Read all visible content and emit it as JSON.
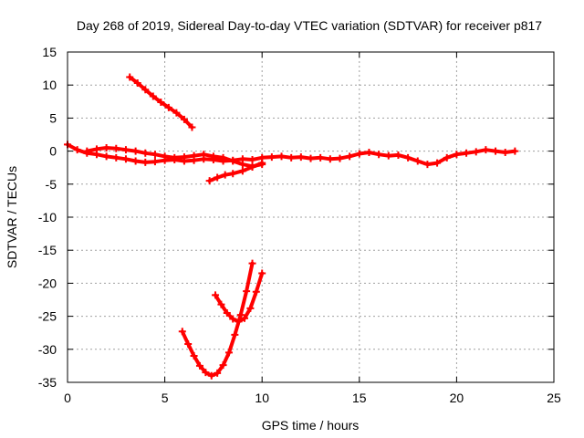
{
  "chart_data": {
    "type": "scatter",
    "title": "Day 268 of 2019, Sidereal Day-to-day VTEC variation (SDTVAR) for receiver p817",
    "xlabel": "GPS time / hours",
    "ylabel": "SDTVAR / TECUs",
    "xlim": [
      0,
      25
    ],
    "ylim": [
      -35,
      15
    ],
    "xticks": [
      0,
      5,
      10,
      15,
      20,
      25
    ],
    "yticks": [
      15,
      10,
      5,
      0,
      -5,
      -10,
      -15,
      -20,
      -25,
      -30,
      -35
    ],
    "grid": true,
    "color": "#ff0000",
    "series": [
      {
        "x": [
          0.0,
          0.5,
          1.0,
          1.5,
          2.0,
          2.5,
          3.0,
          3.5,
          4.0,
          4.5,
          5.0,
          5.5,
          6.0,
          6.5,
          7.0,
          7.5,
          8.0,
          8.5,
          9.0,
          9.5,
          10.0,
          10.5,
          11.0,
          11.5,
          12.0,
          12.5,
          13.0,
          13.5,
          14.0,
          14.5,
          15.0,
          15.5,
          16.0,
          16.5,
          17.0,
          17.5,
          18.0,
          18.5,
          19.0,
          19.5,
          20.0,
          20.5,
          21.0,
          21.5,
          22.0,
          22.5,
          23.0
        ],
        "y": [
          1.0,
          0.2,
          -0.3,
          -0.5,
          -0.8,
          -1.0,
          -1.2,
          -1.5,
          -1.7,
          -1.6,
          -1.4,
          -1.3,
          -1.5,
          -1.4,
          -1.2,
          -1.3,
          -1.5,
          -1.4,
          -1.2,
          -1.3,
          -1.0,
          -0.9,
          -0.8,
          -1.0,
          -0.9,
          -1.1,
          -1.0,
          -1.2,
          -1.1,
          -0.8,
          -0.4,
          -0.2,
          -0.5,
          -0.7,
          -0.6,
          -1.0,
          -1.5,
          -2.0,
          -1.8,
          -1.0,
          -0.5,
          -0.3,
          -0.1,
          0.2,
          0.0,
          -0.2,
          0.0
        ]
      },
      {
        "x": [
          1.0,
          1.5,
          2.0,
          2.5,
          3.0,
          3.5,
          4.0,
          4.5,
          5.0,
          5.5,
          6.0,
          6.5,
          7.0,
          7.5,
          8.0,
          8.5,
          9.0,
          9.5,
          10.0
        ],
        "y": [
          0.0,
          0.3,
          0.5,
          0.4,
          0.2,
          0.0,
          -0.3,
          -0.5,
          -0.8,
          -1.0,
          -0.9,
          -0.7,
          -0.5,
          -0.8,
          -1.0,
          -1.5,
          -2.0,
          -2.3,
          -2.0
        ]
      },
      {
        "x": [
          7.3,
          7.7,
          8.1,
          8.5,
          9.0,
          9.5,
          10.0
        ],
        "y": [
          -4.5,
          -4.0,
          -3.6,
          -3.4,
          -3.0,
          -2.4,
          -1.8
        ]
      },
      {
        "x": [
          3.2,
          3.6,
          4.0,
          4.4,
          4.8,
          5.2,
          5.6,
          6.0,
          6.4
        ],
        "y": [
          11.2,
          10.3,
          9.3,
          8.3,
          7.4,
          6.6,
          5.8,
          4.8,
          3.6
        ]
      },
      {
        "x": [
          5.9,
          6.2,
          6.5,
          6.8,
          7.1,
          7.4,
          7.7,
          8.0,
          8.3,
          8.6,
          8.9,
          9.2,
          9.5
        ],
        "y": [
          -27.3,
          -29.2,
          -31.0,
          -32.5,
          -33.5,
          -34.0,
          -33.6,
          -32.4,
          -30.5,
          -27.8,
          -24.8,
          -21.2,
          -17.0
        ]
      },
      {
        "x": [
          7.6,
          7.9,
          8.2,
          8.5,
          8.8,
          9.1,
          9.4,
          9.7,
          10.0
        ],
        "y": [
          -21.8,
          -23.2,
          -24.5,
          -25.4,
          -25.8,
          -25.3,
          -23.8,
          -21.3,
          -18.5
        ]
      }
    ]
  }
}
